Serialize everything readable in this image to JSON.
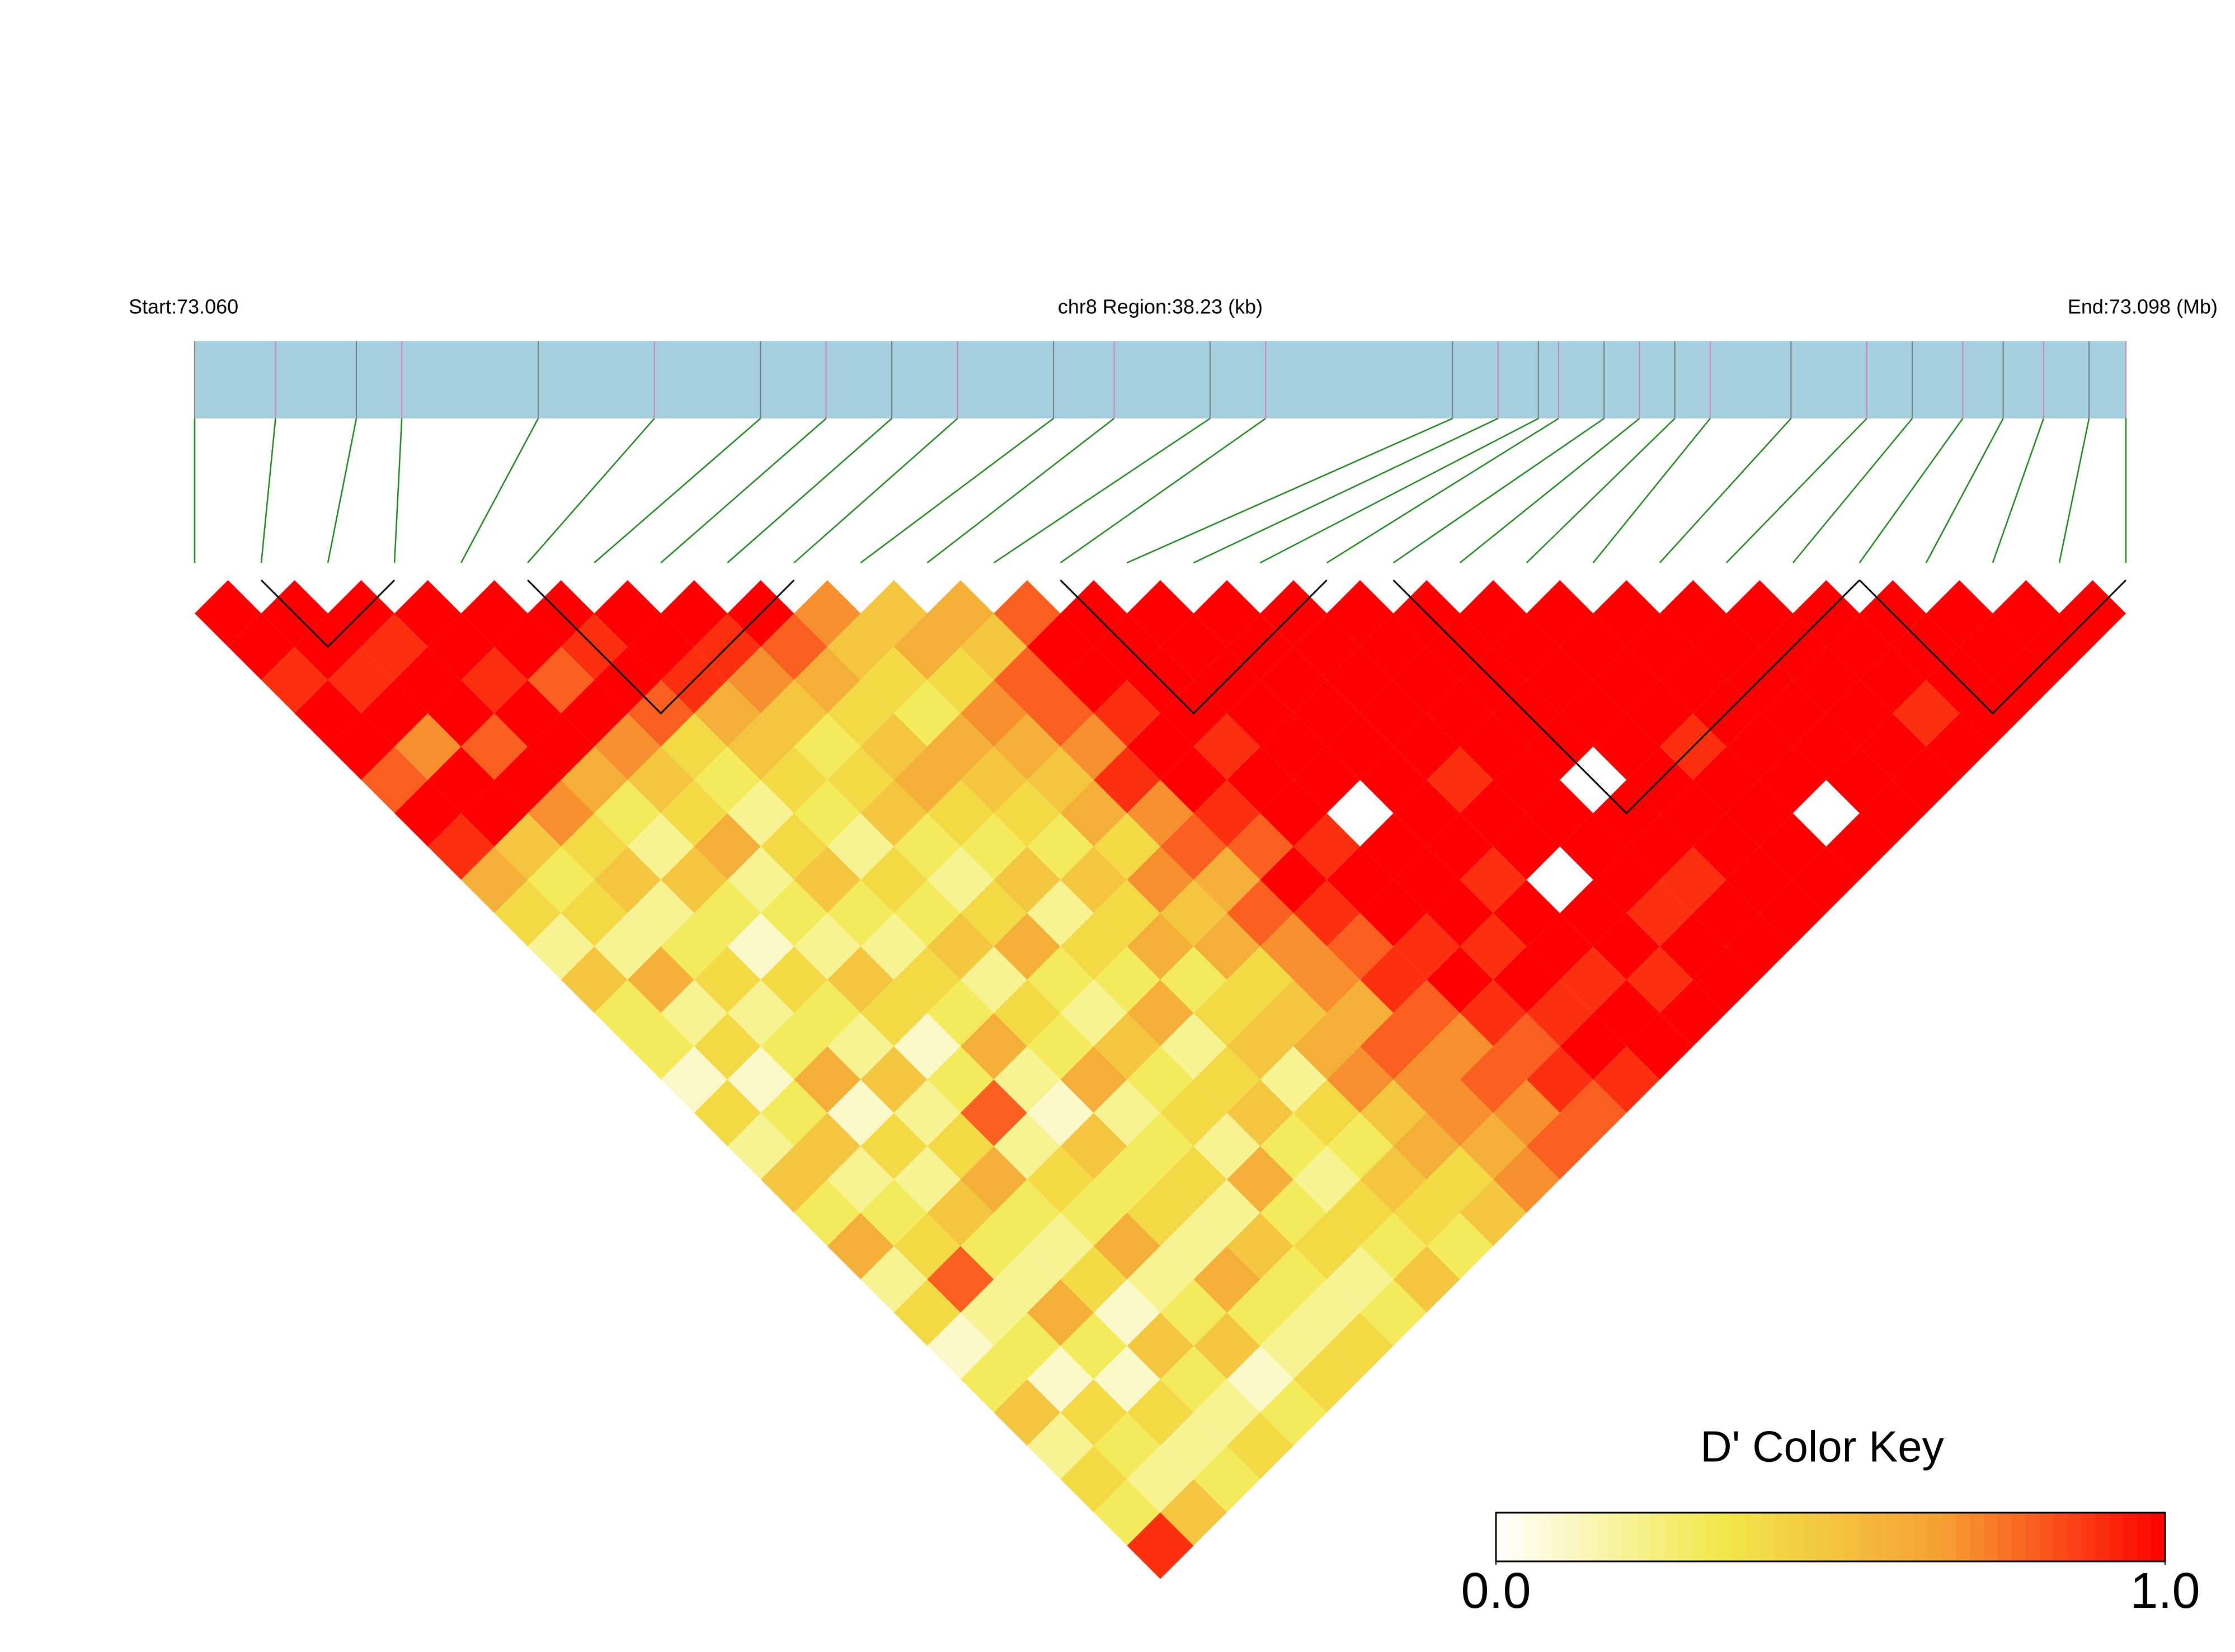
{
  "chart_data": {
    "type": "ld-heatmap",
    "start_label": "Start:73.060",
    "region_label": "chr8 Region:38.23 (kb)",
    "end_label": "End:73.098 (Mb)",
    "xlim": [
      73.06,
      73.09823
    ],
    "positions": [
      73.06,
      73.0616,
      73.0632,
      73.0641,
      73.0668,
      73.0691,
      73.0712,
      73.0725,
      73.0738,
      73.0751,
      73.077,
      73.0782,
      73.0801,
      73.0812,
      73.0849,
      73.0858,
      73.0866,
      73.087,
      73.0879,
      73.0886,
      73.0893,
      73.09,
      73.0916,
      73.0931,
      73.094,
      73.095,
      73.0958,
      73.0966,
      73.0975,
      73.09823
    ],
    "ld": [
      [
        1,
        1,
        0.9,
        1,
        1,
        0.8,
        1,
        0.9,
        0.6,
        0.4,
        0.2,
        0.5,
        0.3,
        0.3,
        0.1,
        0.4,
        0.2,
        0.5,
        0.3,
        0.6,
        0.2,
        0.4,
        0.1,
        0.3,
        0.5,
        0.2,
        0.4,
        0.3,
        0.9
      ],
      [
        1,
        1,
        0.9,
        1,
        0.7,
        1,
        1,
        0.5,
        0.3,
        0.4,
        0.2,
        0.6,
        0.2,
        0.4,
        0.1,
        0.3,
        0.5,
        0.2,
        0.3,
        0.4,
        0.8,
        0.2,
        0.3,
        0.1,
        0.4,
        0.3,
        0.2,
        0.5
      ],
      [
        1,
        0.9,
        1,
        1,
        0.8,
        1,
        0.7,
        0.4,
        0.5,
        0.2,
        0.3,
        0.4,
        0.2,
        0.3,
        0.6,
        0.1,
        0.4,
        0.2,
        0.5,
        0.3,
        0.2,
        0.6,
        0.3,
        0.1,
        0.4,
        0.2,
        0.3
      ],
      [
        1,
        1,
        0.9,
        1,
        1,
        0.6,
        0.3,
        0.2,
        0.5,
        0.3,
        0.1,
        0.4,
        0.3,
        0.2,
        0.5,
        0.2,
        0.4,
        0.6,
        0.3,
        0.2,
        0.4,
        0.1,
        0.5,
        0.3,
        0.2,
        0.4
      ],
      [
        1,
        1,
        0.8,
        1,
        0.7,
        0.5,
        0.4,
        0.6,
        0.2,
        0.3,
        0.2,
        0.5,
        0.4,
        0.1,
        0.3,
        0.8,
        0.2,
        0.4,
        0.3,
        0.6,
        0.2,
        0.3,
        0.5,
        0.1,
        0.3
      ],
      [
        1,
        0.9,
        1,
        0.8,
        0.4,
        0.3,
        0.2,
        0.4,
        0.5,
        0.3,
        0.2,
        0.4,
        0.3,
        0.6,
        0.2,
        0.1,
        0.5,
        0.3,
        0.4,
        0.2,
        0.6,
        0.3,
        0.2,
        0.4
      ],
      [
        1,
        1,
        0.9,
        0.6,
        0.5,
        0.4,
        0.3,
        0.2,
        0.4,
        0.3,
        0.5,
        0.2,
        0.4,
        0.3,
        0.6,
        0.2,
        0.3,
        0.4,
        0.2,
        0.5,
        0.3,
        0.2,
        0.4
      ],
      [
        1,
        0.9,
        0.7,
        0.5,
        0.3,
        0.4,
        0.5,
        0.3,
        0.2,
        0.4,
        0.6,
        0.3,
        0.2,
        0.5,
        0.3,
        0.4,
        0.2,
        0.6,
        0.3,
        0.4,
        0.2,
        0.3
      ],
      [
        1,
        0.8,
        0.6,
        0.4,
        0.5,
        0.6,
        0.4,
        0.3,
        0.5,
        0.2,
        0.4,
        0.3,
        0.6,
        0.2,
        0.4,
        0.5,
        0.3,
        0.2,
        0.4,
        0.3,
        0.5
      ],
      [
        0.7,
        0.5,
        0.4,
        0.3,
        0.6,
        0.5,
        0.4,
        0.3,
        0.5,
        0.4,
        0.6,
        0.3,
        0.4,
        0.5,
        0.2,
        0.4,
        0.3,
        0.5,
        0.4,
        0.3
      ],
      [
        0.5,
        0.6,
        0.4,
        0.7,
        0.6,
        0.5,
        0.6,
        0.4,
        0.7,
        0.5,
        0.6,
        0.4,
        0.5,
        0.6,
        0.7,
        0.5,
        0.6,
        0.4,
        0.5
      ],
      [
        0.6,
        0.5,
        0.8,
        0.8,
        0.7,
        0.9,
        0.7,
        0.8,
        0.6,
        0.8,
        0.7,
        0.7,
        0.6,
        0.8,
        0.7,
        0.7,
        0.6,
        0.7
      ],
      [
        0.8,
        1,
        1,
        0.9,
        1,
        1,
        0.9,
        0.8,
        1,
        0.9,
        0.8,
        0.9,
        0.8,
        0.7,
        0.8,
        0.7,
        0.8
      ],
      [
        1,
        1,
        1,
        1,
        0.9,
        1,
        1,
        0.9,
        1,
        1,
        0.9,
        1,
        0.9,
        0.8,
        0.9,
        0.8
      ],
      [
        1,
        1,
        1,
        1,
        1,
        1,
        0,
        1,
        1,
        1,
        0.9,
        1,
        0.9,
        1,
        0.9
      ],
      [
        1,
        1,
        1,
        1,
        1,
        1,
        1,
        1,
        0.9,
        1,
        1,
        0.9,
        1,
        1
      ],
      [
        1,
        1,
        1,
        1,
        1,
        0.9,
        1,
        1,
        0,
        1,
        1,
        0.9,
        1
      ],
      [
        1,
        1,
        1,
        1,
        1,
        1,
        1,
        1,
        1,
        0.9,
        1,
        1
      ],
      [
        1,
        1,
        1,
        1,
        1,
        0,
        1,
        1,
        0.9,
        1,
        1
      ],
      [
        1,
        1,
        1,
        1,
        1,
        1,
        1,
        1,
        1,
        1
      ],
      [
        1,
        1,
        1,
        1,
        0.9,
        1,
        1,
        1,
        1
      ],
      [
        1,
        1,
        1,
        1,
        1,
        1,
        0,
        1
      ],
      [
        1,
        1,
        1,
        1,
        1,
        1,
        1
      ],
      [
        1,
        1,
        1,
        1,
        1,
        1
      ],
      [
        1,
        1,
        1,
        0.9,
        1
      ],
      [
        1,
        1,
        1,
        1
      ],
      [
        1,
        1,
        1
      ],
      [
        1,
        1
      ],
      [
        1
      ]
    ],
    "blocks": [
      [
        1,
        3
      ],
      [
        5,
        9
      ],
      [
        13,
        17
      ],
      [
        18,
        25
      ],
      [
        25,
        29
      ]
    ],
    "colorscale": [
      "#ffffff",
      "#f2e94a",
      "#f5a033",
      "#ff0000"
    ],
    "clim": [
      0,
      1
    ],
    "colorkey_title": "D' Color Key",
    "cticks": [
      {
        "value": 0,
        "label": "0.0"
      },
      {
        "value": 1,
        "label": "1.0"
      }
    ]
  }
}
